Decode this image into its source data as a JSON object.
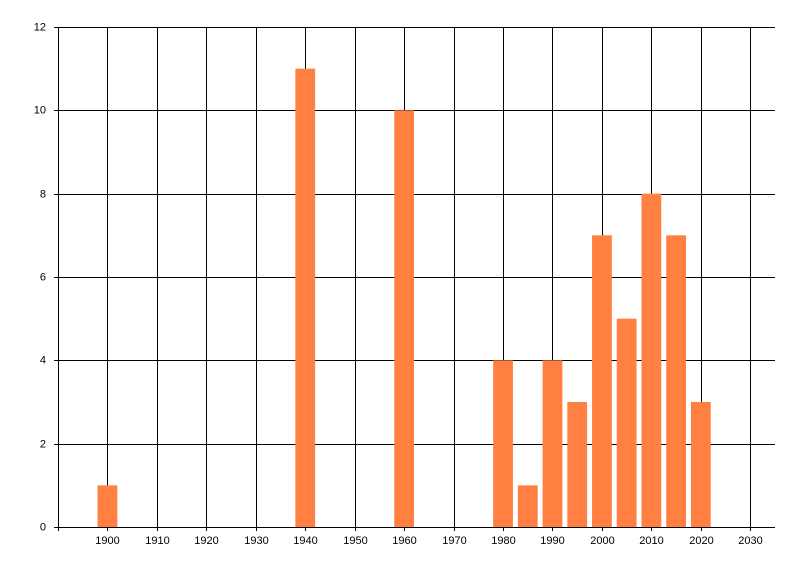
{
  "chart_data": {
    "type": "bar",
    "x": [
      1900,
      1940,
      1960,
      1980,
      1985,
      1990,
      1995,
      2000,
      2005,
      2010,
      2015,
      2020
    ],
    "values": [
      1,
      11,
      10,
      4,
      1,
      4,
      3,
      7,
      5,
      8,
      7,
      3
    ],
    "color": "#ff8040",
    "xlim": [
      1890,
      2035
    ],
    "xticks": [
      1900,
      1910,
      1920,
      1930,
      1940,
      1950,
      1960,
      1970,
      1980,
      1990,
      2000,
      2010,
      2020,
      2030
    ],
    "ylim": [
      0,
      12
    ],
    "yticks": [
      0,
      2,
      4,
      6,
      8,
      10,
      12
    ],
    "grid": true
  }
}
